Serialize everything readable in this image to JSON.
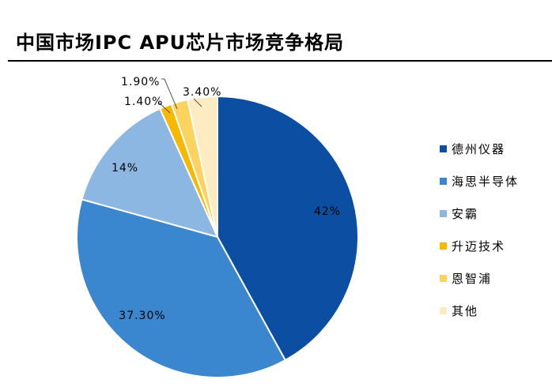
{
  "page": {
    "title": "中国市场IPC APU芯片市场竞争格局"
  },
  "chart_data": {
    "type": "pie",
    "title": "中国市场IPC APU芯片市场竞争格局",
    "legend_position": "right",
    "slices": [
      {
        "name": "德州仪器",
        "value": 42.0,
        "label": "42%",
        "color": "#0B4EA2"
      },
      {
        "name": "海思半导体",
        "value": 37.3,
        "label": "37.30%",
        "color": "#3A86CF"
      },
      {
        "name": "安霸",
        "value": 14.0,
        "label": "14%",
        "color": "#8DB7E3"
      },
      {
        "name": "升迈技术",
        "value": 1.4,
        "label": "1.40%",
        "color": "#F6B800"
      },
      {
        "name": "恩智浦",
        "value": 1.9,
        "label": "1.90%",
        "color": "#FBD35E"
      },
      {
        "name": "其他",
        "value": 3.4,
        "label": "3.40%",
        "color": "#FDEBC1"
      }
    ]
  }
}
